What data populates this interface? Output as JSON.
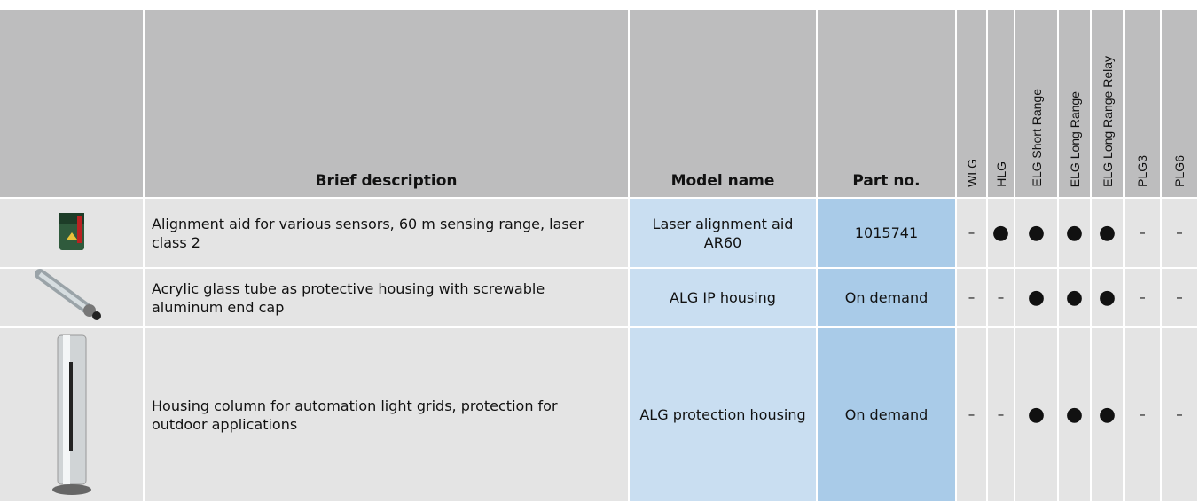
{
  "table": {
    "header": [
      "Brief description",
      "Model name",
      "Part no.",
      "WLG",
      "HLG",
      "ELG Short Range",
      "ELG Long Range",
      "ELG Long Range Relay",
      "PLG3",
      "PLG6"
    ],
    "rows": [
      [
        "Alignment aid for various sensors, 60 m sensing range, laser class 2",
        "Laser alignment aid AR60",
        "1015741",
        "–",
        "●",
        "●",
        "●",
        "●",
        "–",
        "–"
      ],
      [
        "Acrylic glass tube as protective housing with screwable aluminum end cap",
        "ALG IP housing",
        "On demand",
        "–",
        "–",
        "●",
        "●",
        "●",
        "–",
        "–"
      ],
      [
        "Housing column for automation light grids, protection for outdoor applications",
        "ALG protection housing",
        "On demand",
        "–",
        "–",
        "●",
        "●",
        "●",
        "–",
        "–"
      ]
    ]
  }
}
